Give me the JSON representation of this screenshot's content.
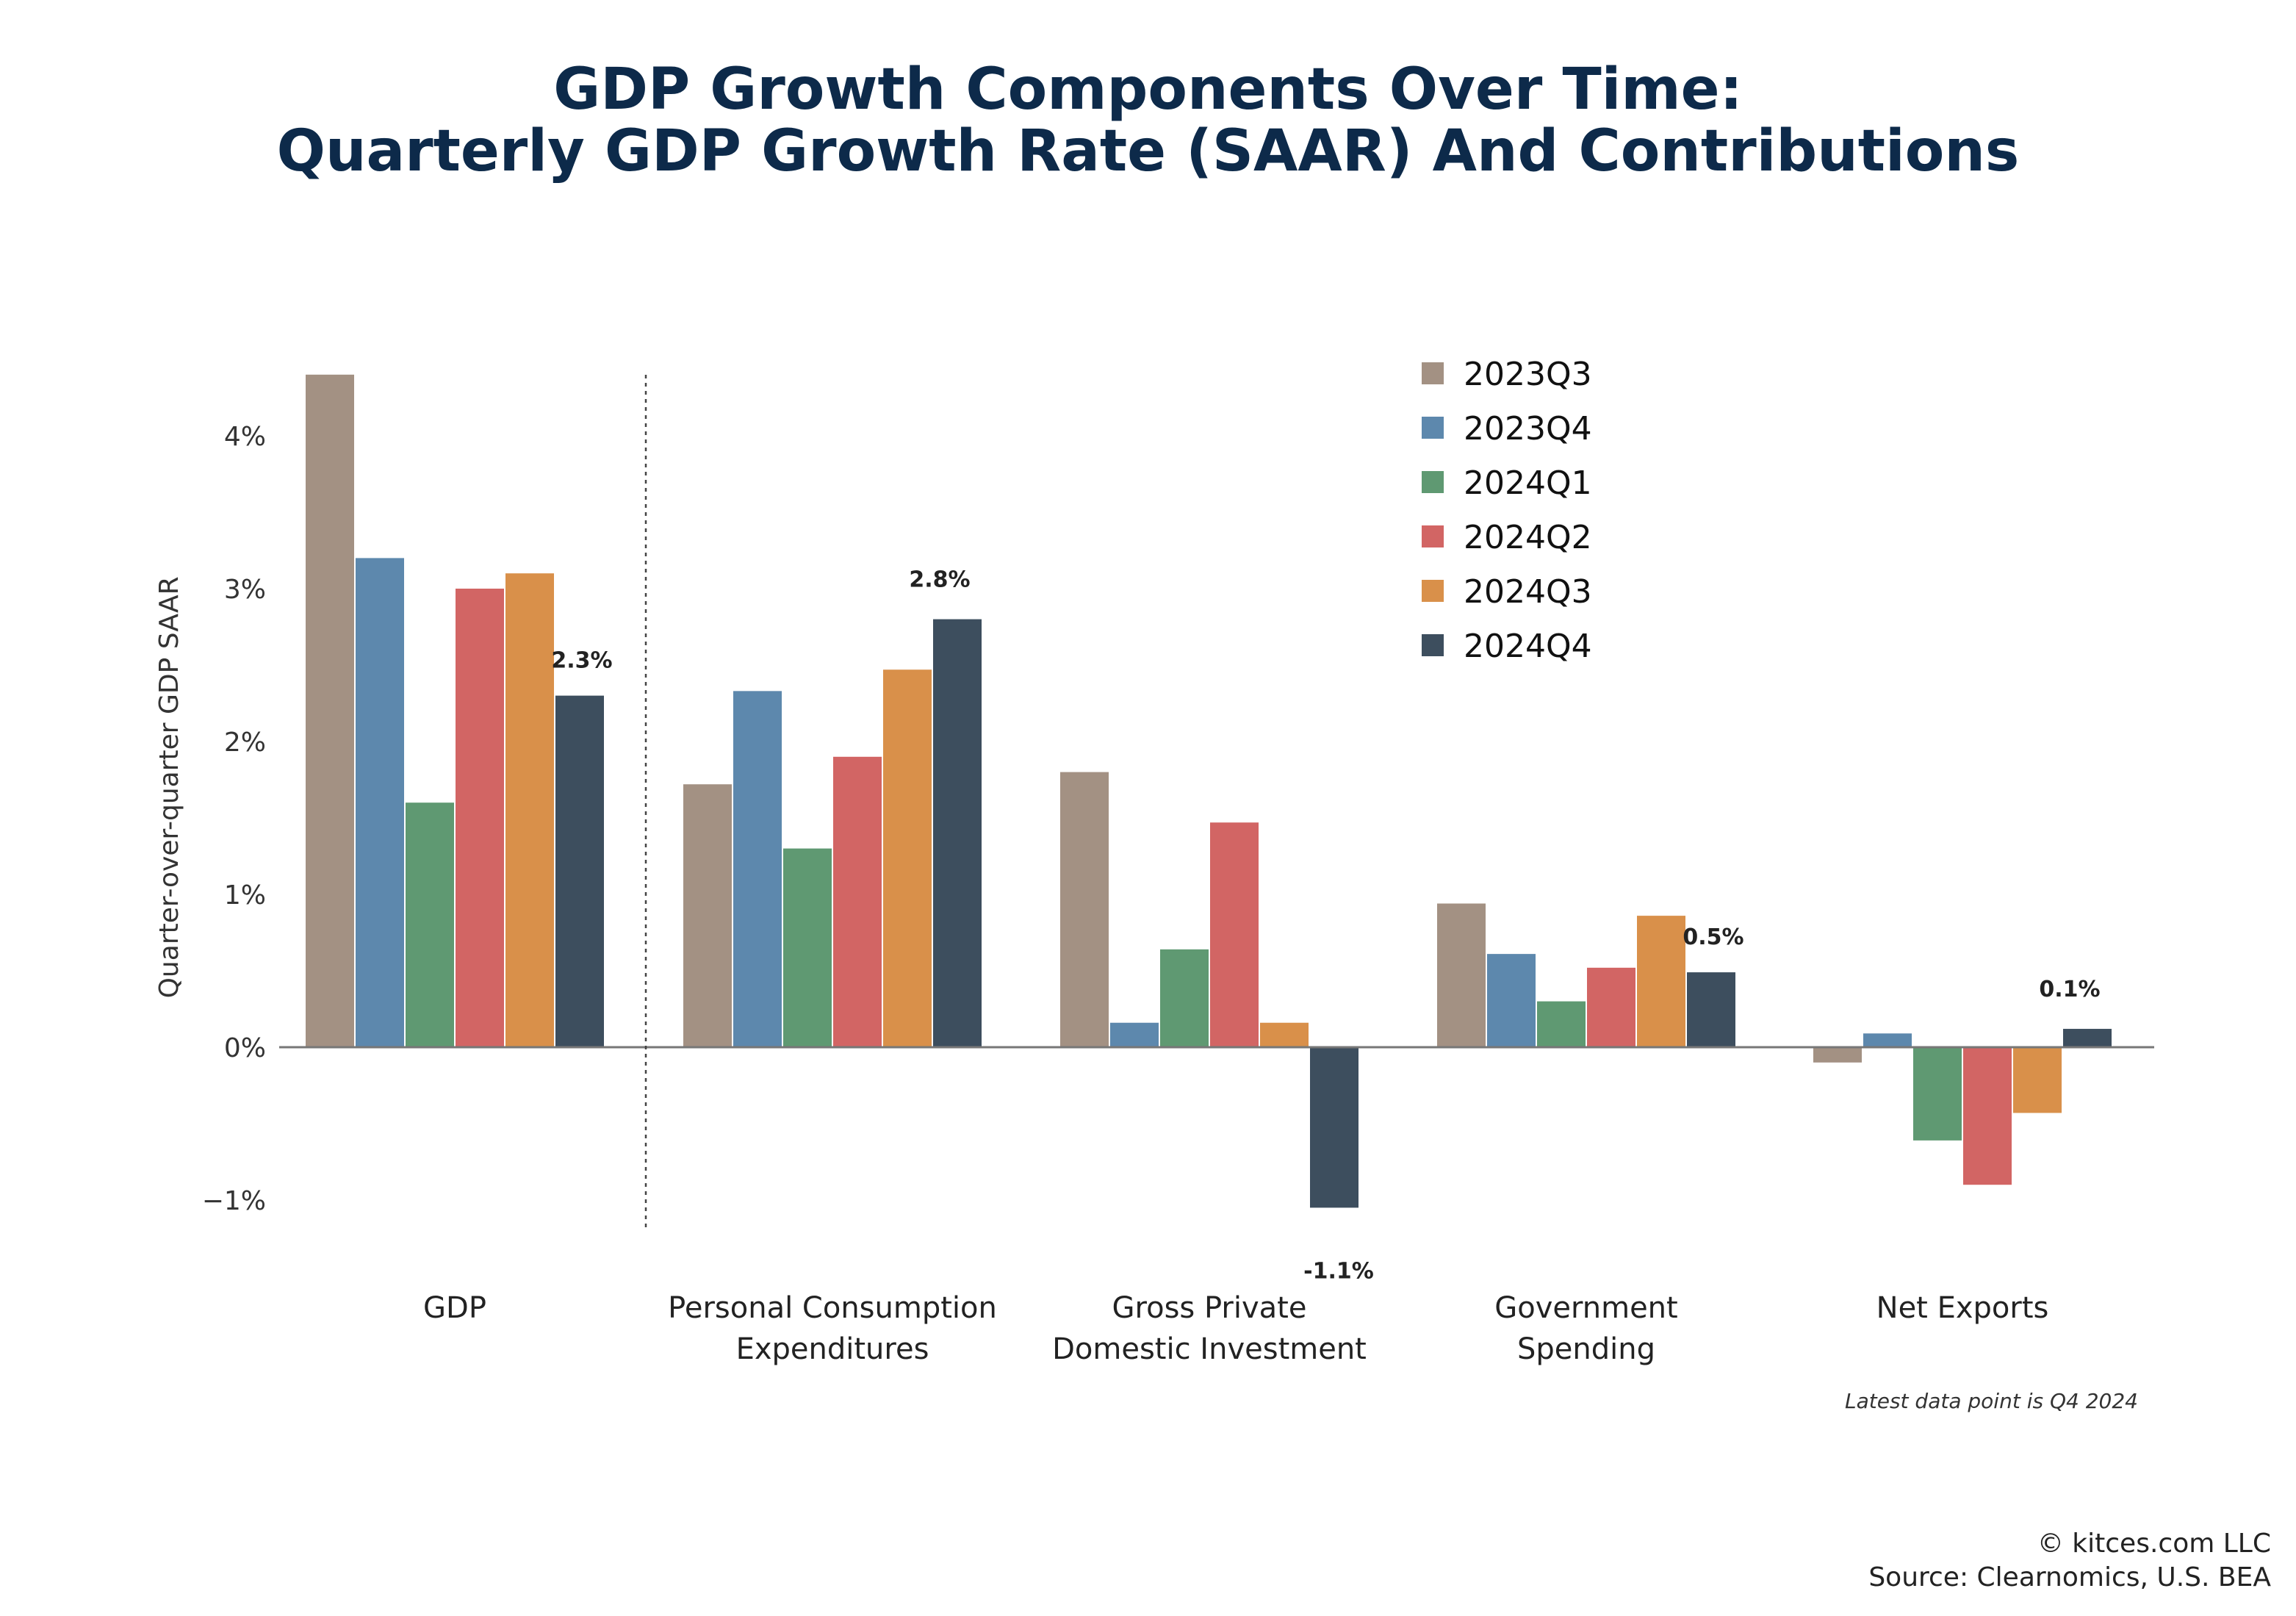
{
  "chart_data": {
    "type": "bar",
    "title_line1": "GDP Growth Components Over Time:",
    "title_line2": "Quarterly GDP Growth Rate (SAAR) And Contributions",
    "ylabel": "Quarter-over-quarter GDP SAAR",
    "ylim": [
      -1.25,
      4.6
    ],
    "yticks": [
      {
        "value": 4,
        "label": "4%"
      },
      {
        "value": 3,
        "label": "3%"
      },
      {
        "value": 2,
        "label": "2%"
      },
      {
        "value": 1,
        "label": "1%"
      },
      {
        "value": 0,
        "label": "0%"
      },
      {
        "value": -1,
        "label": "−1%"
      }
    ],
    "categories": [
      [
        "GDP"
      ],
      [
        "Personal Consumption",
        "Expenditures"
      ],
      [
        "Gross Private",
        "Domestic Investment"
      ],
      [
        "Government",
        "Spending"
      ],
      [
        "Net Exports"
      ]
    ],
    "series": [
      {
        "name": "2023Q3",
        "color": "#a39183",
        "values": [
          4.4,
          1.72,
          1.8,
          0.94,
          -0.1
        ]
      },
      {
        "name": "2023Q4",
        "color": "#5d88ad",
        "values": [
          3.2,
          2.33,
          0.16,
          0.61,
          0.09
        ]
      },
      {
        "name": "2024Q1",
        "color": "#5f9972",
        "values": [
          1.6,
          1.3,
          0.64,
          0.3,
          -0.61
        ]
      },
      {
        "name": "2024Q2",
        "color": "#d26564",
        "values": [
          3.0,
          1.9,
          1.47,
          0.52,
          -0.9
        ]
      },
      {
        "name": "2024Q3",
        "color": "#d9904a",
        "values": [
          3.1,
          2.47,
          0.16,
          0.86,
          -0.43
        ]
      },
      {
        "name": "2024Q4",
        "color": "#3d4e5e",
        "values": [
          2.3,
          2.8,
          -1.05,
          0.49,
          0.12
        ]
      }
    ],
    "data_labels": [
      {
        "category": 0,
        "series": 5,
        "text": "2.3%"
      },
      {
        "category": 1,
        "series": 5,
        "text": "2.8%"
      },
      {
        "category": 2,
        "series": 5,
        "text": "-1.1%"
      },
      {
        "category": 3,
        "series": 5,
        "text": "0.5%"
      },
      {
        "category": 4,
        "series": 5,
        "text": "0.1%"
      }
    ],
    "legend_position": "top-right",
    "separator_after_category": 0,
    "note": "Latest data point is Q4 2024"
  },
  "footer": {
    "copyright": "© kitces.com LLC",
    "source": "Source: Clearnomics, U.S. BEA"
  }
}
